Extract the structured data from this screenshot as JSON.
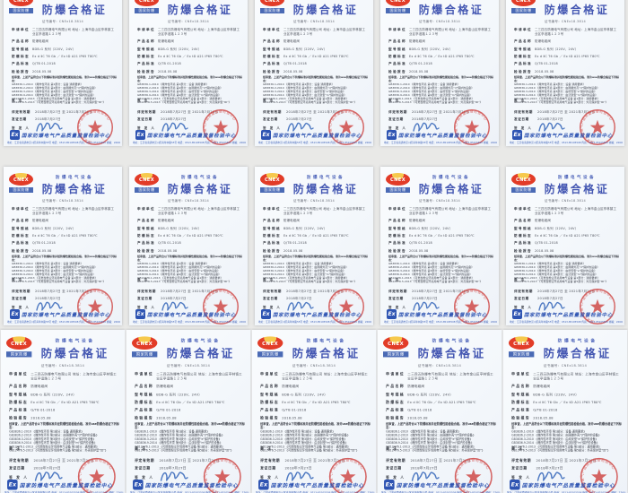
{
  "grid": {
    "rows": 3,
    "cols": 5
  },
  "colors": {
    "background_gap": "#e9e9e7",
    "page": "#f6f9fc",
    "title_blue": "#4457b2",
    "logo_red": "#e23c28",
    "logo_yellow": "#f6c94d",
    "footer_blue": "#2e54b2",
    "stamp_red": "#d04a48"
  },
  "certificate": {
    "logo": {
      "text": "CNEX",
      "subtext": "国家防爆"
    },
    "header": {
      "supertitle": "防爆电气设备",
      "title": "防爆合格证",
      "cert_no_line": "证书编号：CNEx18.3814"
    },
    "fields": [
      {
        "label": "申请单位",
        "value": "二三四五防爆电气有限公司\n地址：上海市金山区亭林镇工业区亭谊路１２３号"
      },
      {
        "label": "产品名称",
        "value": "防爆电磁阀"
      },
      {
        "label": "型号规格",
        "value": "BDB-G 系列（220V、24V）"
      },
      {
        "label": "防爆标志",
        "value": "Ex d ⅡC T6 Gb ／ Ex tD A21 IP65 T80℃"
      },
      {
        "label": "产品标准",
        "value": "Q/TB 01-2018"
      },
      {
        "label": "检验报告",
        "value": "2018.05.08"
      }
    ],
    "statement_lead": "经审查，上述产品符合以下防爆标准并经防爆性能检验合格，准许use防爆合格证下列标志：",
    "standards_lines": [
      "GB3836.1-2010 《爆炸性环境 第1部分：设备 通用要求》",
      "GB3836.2-2010 《爆炸性环境 第2部分：由隔爆外壳\"d\"保护的设备》",
      "GB3836.3-2010 《爆炸性环境 第3部分：由增安型\"e\"保护的设备》",
      "GB3836.9-2014 《爆炸性环境 第9部分：由浇封型\"m\"保护的设备》",
      "GB12476.1-2013 《可燃性粉尘环境用电气设备 第1部分：通用要求》",
      "GB12476.5-2013 《可燃性粉尘环境用电气设备 第5部分：外壳保护型\"tD\"》"
    ],
    "remark_label": "备  注",
    "remark_value": "——————",
    "validity": {
      "label": "评定有效期",
      "value": "2018年7月27日 至 2021年7月26日"
    },
    "issue_date": {
      "label": "发证日期",
      "value": "2018年7月27日"
    },
    "signer_label": "签 发 人",
    "stamp_text": "国家防爆电气产品质量监督检验中心",
    "footer": {
      "ex_mark": "Ex",
      "org_name": "国家防爆电气产品质量监督检验中心",
      "contact_line": "地址：江苏省南通市崇川区青年中路55号  电话：0513-85105508  传真：0513-85105500  邮编：226009"
    }
  }
}
